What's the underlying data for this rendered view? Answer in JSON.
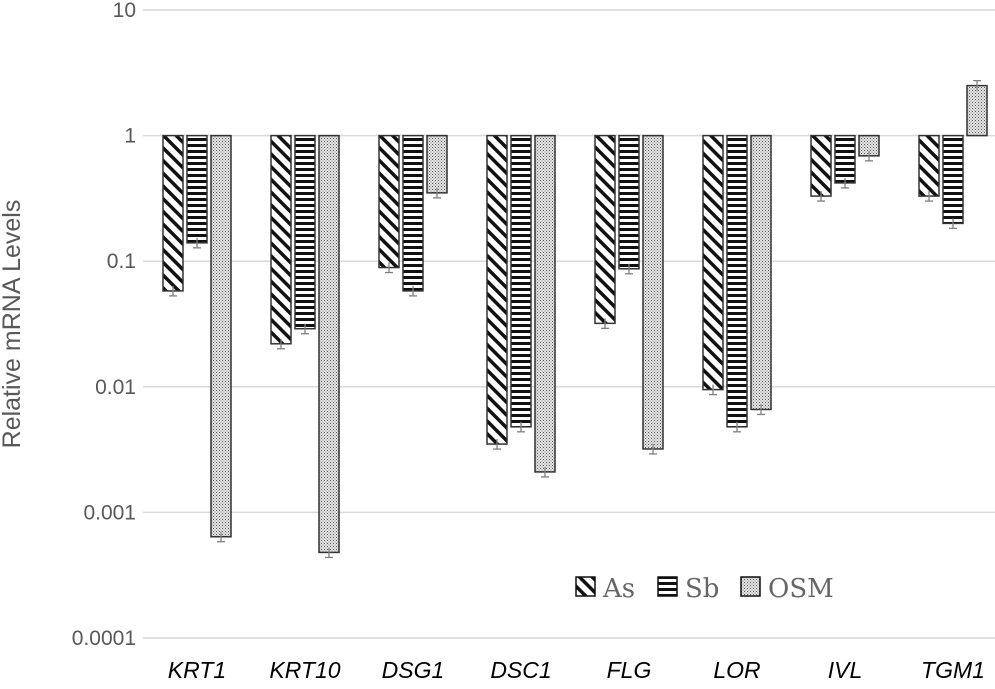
{
  "chart_data": {
    "type": "bar",
    "title": "",
    "xlabel": "",
    "ylabel": "Relative mRNA Levels",
    "yscale": "log",
    "ylim": [
      0.0001,
      10
    ],
    "yticks": [
      "10",
      "1",
      "0.1",
      "0.01",
      "0.001",
      "0.0001"
    ],
    "baseline": 1,
    "grid": true,
    "legend_position": "lower right (inside plot)",
    "categories": [
      "KRT1",
      "KRT10",
      "DSG1",
      "DSC1",
      "FLG",
      "LOR",
      "IVL",
      "TGM1"
    ],
    "series": [
      {
        "name": "As",
        "pattern": "diagonal-hatch",
        "values": [
          0.058,
          0.022,
          0.089,
          0.0035,
          0.032,
          0.0095,
          0.33,
          0.33
        ]
      },
      {
        "name": "Sb",
        "pattern": "horizontal-stripes",
        "values": [
          0.14,
          0.029,
          0.058,
          0.0048,
          0.087,
          0.0048,
          0.42,
          0.2
        ]
      },
      {
        "name": "OSM",
        "pattern": "dotted",
        "values": [
          0.00064,
          0.00048,
          0.35,
          0.0021,
          0.0032,
          0.0066,
          0.69,
          2.5
        ]
      }
    ],
    "error_bars": true
  },
  "legend": [
    "As",
    "Sb",
    "OSM"
  ],
  "colors": {
    "grid": "#d9d9d9",
    "axis_text": "#595959",
    "bar_outline": "#333333",
    "error_bar": "#7f7f7f"
  }
}
